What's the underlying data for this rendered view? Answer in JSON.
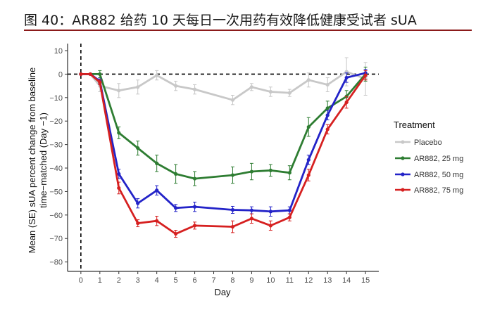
{
  "figure": {
    "title": "图 40：AR882 给药 10 天每日一次用药有效降低健康受试者 sUA"
  },
  "chart_data": {
    "type": "line",
    "xlabel": "Day",
    "ylabel_lines": [
      "Mean (SE) sUA percent change from baseline",
      "time−matched (Day −1)"
    ],
    "xlim": [
      -0.7,
      15.7
    ],
    "ylim": [
      -84,
      13
    ],
    "x_ticks": [
      0,
      1,
      2,
      3,
      4,
      5,
      6,
      7,
      8,
      9,
      10,
      11,
      12,
      13,
      14,
      15
    ],
    "y_ticks": [
      10,
      0,
      -10,
      -20,
      -30,
      -40,
      -50,
      -60,
      -70,
      -80
    ],
    "x_tick_labels": [
      "0",
      "1",
      "2",
      "3",
      "4",
      "5",
      "6",
      "7",
      "8",
      "9",
      "10",
      "11",
      "12",
      "13",
      "14",
      "15"
    ],
    "y_tick_labels": [
      "10",
      "0",
      "−10",
      "−20",
      "−30",
      "−40",
      "−50",
      "−60",
      "−70",
      "−80"
    ],
    "reference_lines": {
      "horizontal_y": 0,
      "vertical_x": 0,
      "style": "dashed"
    },
    "legend": {
      "title": "Treatment",
      "placement": "right"
    },
    "series": [
      {
        "name": "Placebo",
        "color": "#c8c8c8",
        "x": [
          0,
          0.5,
          1,
          2,
          3,
          4,
          5,
          6,
          8,
          9,
          10,
          11,
          12,
          13,
          14,
          15
        ],
        "y": [
          0,
          0,
          -5,
          -7,
          -5.5,
          -0.5,
          -5,
          -6.5,
          -11,
          -5.5,
          -7.5,
          -8,
          -2.5,
          -4.5,
          1,
          -2
        ],
        "err": [
          0,
          0,
          2.5,
          3,
          3,
          2,
          2,
          2,
          2,
          1.5,
          2,
          1.5,
          3,
          3,
          6,
          7
        ]
      },
      {
        "name": "AR882, 25 mg",
        "color": "#2e7d32",
        "x": [
          0,
          0.5,
          1,
          2,
          3,
          4,
          5,
          6,
          8,
          9,
          10,
          11,
          12,
          13,
          14,
          15
        ],
        "y": [
          0,
          0,
          0,
          -25,
          -31.5,
          -38,
          -42.5,
          -44.5,
          -43,
          -41.5,
          -41,
          -42,
          -22.5,
          -14.5,
          -9.5,
          0
        ],
        "err": [
          0,
          0,
          1.5,
          2.5,
          3,
          3.5,
          4,
          3,
          3.5,
          3.5,
          2.5,
          3,
          4,
          3,
          2.5,
          3
        ]
      },
      {
        "name": "AR882, 50 mg",
        "color": "#2323c8",
        "x": [
          0,
          0.5,
          1,
          2,
          3,
          4,
          5,
          6,
          8,
          9,
          10,
          11,
          12,
          13,
          14,
          15
        ],
        "y": [
          0,
          0,
          -3,
          -42.5,
          -55,
          -49.5,
          -57,
          -56.5,
          -57.8,
          -58,
          -58.5,
          -58,
          -36.5,
          -17.5,
          -1.5,
          0.5
        ],
        "err": [
          0,
          0,
          1,
          2,
          2,
          2,
          1.5,
          2,
          1.5,
          1.5,
          2,
          1.5,
          2,
          2,
          2,
          1.5
        ]
      },
      {
        "name": "AR882, 75 mg",
        "color": "#d62020",
        "x": [
          0,
          0.5,
          1,
          2,
          3,
          4,
          5,
          6,
          8,
          9,
          10,
          11,
          12,
          13,
          14,
          15
        ],
        "y": [
          0,
          0,
          -3.5,
          -48.5,
          -63.5,
          -62.5,
          -68,
          -64.5,
          -65,
          -61.5,
          -64.5,
          -61,
          -43,
          -23.5,
          -12,
          -0.5
        ],
        "err": [
          0,
          0,
          1,
          2.5,
          1.5,
          2,
          1.5,
          1.5,
          2.5,
          2,
          2,
          1.5,
          2.5,
          2,
          2.5,
          2
        ]
      }
    ]
  }
}
